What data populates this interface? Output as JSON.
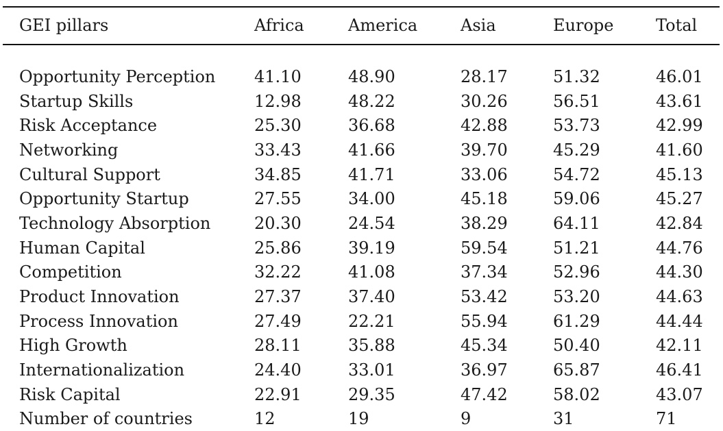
{
  "table": {
    "headers": [
      "GEI pillars",
      "Africa",
      "America",
      "Asia",
      "Europe",
      "Total"
    ],
    "rows": [
      [
        "Opportunity Perception",
        "41.10",
        "48.90",
        "28.17",
        "51.32",
        "46.01"
      ],
      [
        "Startup Skills",
        "12.98",
        "48.22",
        "30.26",
        "56.51",
        "43.61"
      ],
      [
        "Risk Acceptance",
        "25.30",
        "36.68",
        "42.88",
        "53.73",
        "42.99"
      ],
      [
        "Networking",
        "33.43",
        "41.66",
        "39.70",
        "45.29",
        "41.60"
      ],
      [
        "Cultural Support",
        "34.85",
        "41.71",
        "33.06",
        "54.72",
        "45.13"
      ],
      [
        "Opportunity Startup",
        "27.55",
        "34.00",
        "45.18",
        "59.06",
        "45.27"
      ],
      [
        "Technology Absorption",
        "20.30",
        "24.54",
        "38.29",
        "64.11",
        "42.84"
      ],
      [
        "Human Capital",
        "25.86",
        "39.19",
        "59.54",
        "51.21",
        "44.76"
      ],
      [
        "Competition",
        "32.22",
        "41.08",
        "37.34",
        "52.96",
        "44.30"
      ],
      [
        "Product Innovation",
        "27.37",
        "37.40",
        "53.42",
        "53.20",
        "44.63"
      ],
      [
        "Process Innovation",
        "27.49",
        "22.21",
        "55.94",
        "61.29",
        "44.44"
      ],
      [
        "High Growth",
        "28.11",
        "35.88",
        "45.34",
        "50.40",
        "42.11"
      ],
      [
        "Internationalization",
        "24.40",
        "33.01",
        "36.97",
        "65.87",
        "46.41"
      ],
      [
        "Risk Capital",
        "22.91",
        "29.35",
        "47.42",
        "58.02",
        "43.07"
      ],
      [
        "Number of countries",
        "12",
        "19",
        "9",
        "31",
        "71"
      ]
    ]
  }
}
